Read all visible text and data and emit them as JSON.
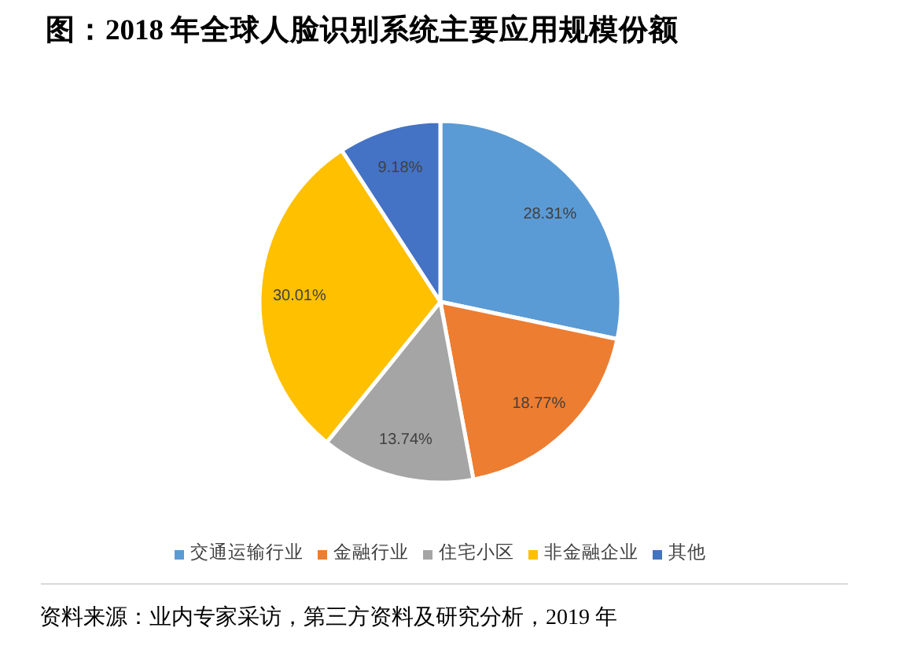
{
  "chart_data": {
    "type": "pie",
    "title": "图：2018 年全球人脸识别系统主要应用规模份额",
    "categories": [
      "交通运输行业",
      "金融行业",
      "住宅小区",
      "非金融企业",
      "其他"
    ],
    "values": [
      28.31,
      18.77,
      13.74,
      30.01,
      9.18
    ],
    "value_labels": [
      "28.31%",
      "18.77%",
      "13.74%",
      "30.01%",
      "9.18%"
    ],
    "colors": [
      "#5b9bd5",
      "#ed7d31",
      "#a5a5a5",
      "#ffc000",
      "#4472c4"
    ],
    "legend": "bottom",
    "annotations": [
      "资料来源：业内专家采访，第三方资料及研究分析，2019 年"
    ]
  }
}
